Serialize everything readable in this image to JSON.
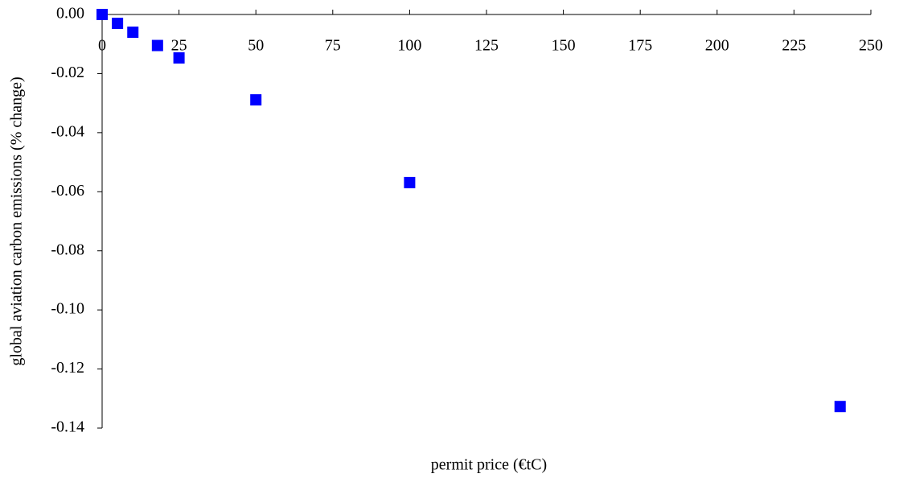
{
  "chart_data": {
    "type": "scatter",
    "x_label": "permit price (€tC)",
    "y_label": "global aviation carbon emissions (% change)",
    "series": [
      {
        "color": "#0000ff",
        "x": [
          0,
          5,
          10,
          18,
          25,
          50,
          100,
          240
        ],
        "values": [
          0,
          -0.003,
          -0.006,
          -0.0105,
          -0.0147,
          -0.0289,
          -0.0569,
          -0.1327
        ]
      }
    ],
    "xlim": [
      0,
      250
    ],
    "xticks": [
      0,
      25,
      50,
      75,
      100,
      125,
      150,
      175,
      200,
      225,
      250
    ],
    "ylim": [
      -0.14,
      0
    ],
    "yticks": [
      {
        "value": 0,
        "label": "0.00"
      },
      -0.02,
      -0.04,
      -0.06,
      -0.08,
      {
        "value": -0.1,
        "label": "-0.10"
      },
      -0.12,
      -0.14
    ]
  }
}
